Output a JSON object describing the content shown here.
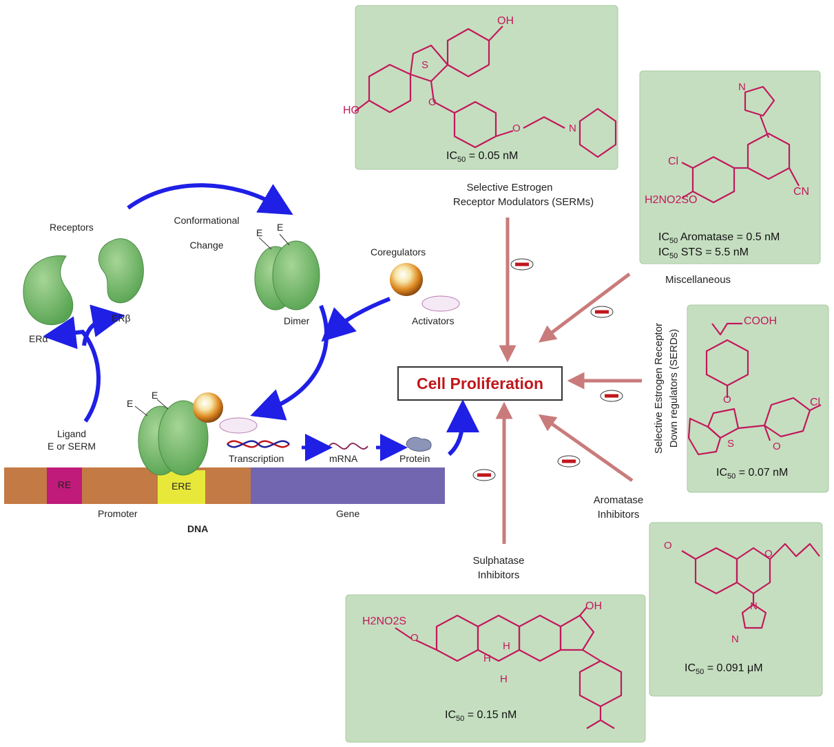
{
  "cell_proliferation": "Cell Proliferation",
  "pathway": {
    "receptors": "Receptors",
    "er_alpha": "ERα",
    "er_beta": "ERβ",
    "conformational": "Conformational",
    "change": "Change",
    "dimer": "Dimer",
    "e_label": "E",
    "coregulators": "Coregulators",
    "activators": "Activators",
    "ligand": "Ligand",
    "ligand_sub": "E or SERM",
    "transcription": "Transcription",
    "mrna": "mRNA",
    "protein": "Protein"
  },
  "dna": {
    "re": "RE",
    "ere": "ERE",
    "promoter": "Promoter",
    "gene": "Gene",
    "dna": "DNA"
  },
  "categories": {
    "serm_1": "Selective Estrogen",
    "serm_2": "Receptor Modulators (SERMs)",
    "misc": "Miscellaneous",
    "serd_1": "Selective Estrogen Receptor",
    "serd_2": "Down regulators (SERDs)",
    "ai_1": "Aromatase",
    "ai_2": "Inhibitors",
    "sulf_1": "Sulphatase",
    "sulf_2": "Inhibitors"
  },
  "compounds": {
    "serm": {
      "ic_pre": "IC",
      "ic_sub": "50",
      "ic_val": " = 0.05 nM"
    },
    "misc": {
      "ic1_pre": "IC",
      "ic1_sub": "50",
      "ic1_val": " Aromatase = 0.5 nM",
      "ic2_pre": "IC",
      "ic2_sub": "50",
      "ic2_val": " STS = 5.5 nM"
    },
    "serd": {
      "ic_pre": "IC",
      "ic_sub": "50",
      "ic_val": " = 0.07 nM"
    },
    "ai": {
      "ic_pre": "IC",
      "ic_sub": "50",
      "ic_val": " = 0.091 μM"
    },
    "sulf": {
      "ic_pre": "IC",
      "ic_sub": "50",
      "ic_val": " = 0.15 nM"
    }
  },
  "chem_labels": {
    "oh": "OH",
    "ho": "HO",
    "o": "O",
    "s": "S",
    "n": "N",
    "cl": "Cl",
    "cn": "CN",
    "h": "H",
    "sulfamate": "H2NO2SO",
    "sulfamate_s": "H2NO2S",
    "cooh": "COOH"
  },
  "colors": {
    "box_fill": "#c5dec0",
    "structure": "#c2185b",
    "pathway_arrow": "#1f1fe6",
    "inhibit_arrow": "#c97b7b",
    "title_red": "#c0171c"
  }
}
